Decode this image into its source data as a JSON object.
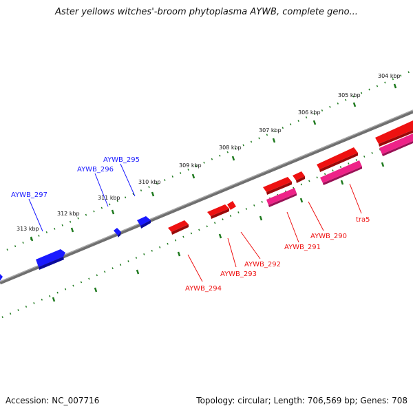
{
  "title": "Aster yellows witches'-broom phytoplasma AYWB, complete geno...",
  "footer": {
    "accession": "Accession: NC_007716",
    "summary": "Topology: circular; Length: 706,569 bp; Genes: 708"
  },
  "colors": {
    "backbone": "#777777",
    "ticks": "#1f7a1f",
    "reverse_genes": "#1a1aff",
    "forward_genes": "#ee1111",
    "rna_like": "#ee2288"
  },
  "kbp_labels": [
    "304 kbp",
    "305 kbp",
    "306 kbp",
    "307 kbp",
    "308 kbp",
    "309 kbp",
    "310 kbp",
    "311 kbp",
    "312 kbp",
    "313 kbp"
  ],
  "gene_labels": {
    "aywb297": "AYWB_297",
    "aywb296": "AYWB_296",
    "aywb295": "AYWB_295",
    "aywb294": "AYWB_294",
    "aywb293": "AYWB_293",
    "aywb292": "AYWB_292",
    "aywb291": "AYWB_291",
    "aywb290": "AYWB_290",
    "tra5": "tra5"
  }
}
